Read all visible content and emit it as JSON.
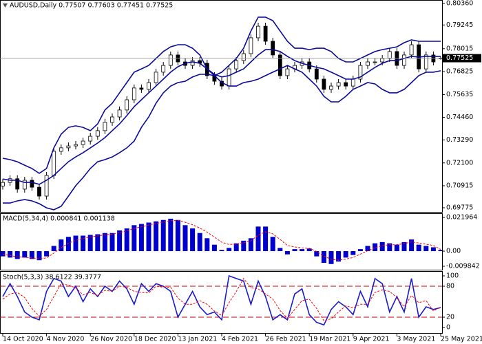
{
  "chart_data": [
    {
      "type": "candlestick",
      "title": "AUDUSD,Daily  0.77507 0.77603 0.77451 0.77525",
      "open": [
        0.709,
        0.7109,
        0.7128,
        0.7074,
        0.712,
        0.7084,
        0.7038,
        0.7145,
        0.727,
        0.7288,
        0.7298,
        0.7305,
        0.7323,
        0.7348,
        0.7377,
        0.742,
        0.7448,
        0.7484,
        0.7537,
        0.7598,
        0.7591,
        0.7626,
        0.768,
        0.7715,
        0.7769,
        0.7733,
        0.7715,
        0.774,
        0.7726,
        0.7662,
        0.7633,
        0.7608,
        0.7697,
        0.774,
        0.7776,
        0.7858,
        0.7918,
        0.784,
        0.7769,
        0.7662,
        0.7697,
        0.7715,
        0.7733,
        0.7697,
        0.7644,
        0.7591,
        0.7608,
        0.7626,
        0.7608,
        0.7644,
        0.7715,
        0.7733,
        0.7733,
        0.7751,
        0.7787,
        0.7715,
        0.7769,
        0.7822,
        0.7697,
        0.7769,
        0.77507
      ],
      "high": [
        0.7127,
        0.7146,
        0.7146,
        0.7138,
        0.7138,
        0.7102,
        0.7163,
        0.7288,
        0.7306,
        0.7316,
        0.7323,
        0.7341,
        0.7366,
        0.7395,
        0.7438,
        0.7466,
        0.7502,
        0.7555,
        0.7616,
        0.7616,
        0.7644,
        0.7698,
        0.7733,
        0.7787,
        0.7787,
        0.7751,
        0.7758,
        0.7758,
        0.7744,
        0.768,
        0.7651,
        0.7715,
        0.7758,
        0.7794,
        0.7876,
        0.7936,
        0.7936,
        0.7858,
        0.7787,
        0.7715,
        0.7733,
        0.7751,
        0.7751,
        0.7715,
        0.7662,
        0.7626,
        0.7644,
        0.7644,
        0.7662,
        0.7733,
        0.7751,
        0.7751,
        0.7769,
        0.7805,
        0.7805,
        0.7787,
        0.784,
        0.784,
        0.7787,
        0.7787,
        0.77603
      ],
      "low": [
        0.7072,
        0.7091,
        0.7056,
        0.7056,
        0.7066,
        0.702,
        0.702,
        0.7127,
        0.7252,
        0.727,
        0.728,
        0.7287,
        0.7305,
        0.733,
        0.7359,
        0.7402,
        0.743,
        0.7466,
        0.7519,
        0.7573,
        0.7573,
        0.7608,
        0.7662,
        0.7697,
        0.7715,
        0.7697,
        0.7697,
        0.7708,
        0.7644,
        0.7615,
        0.759,
        0.759,
        0.7679,
        0.7722,
        0.7758,
        0.784,
        0.7822,
        0.7751,
        0.7644,
        0.7644,
        0.7679,
        0.7697,
        0.7679,
        0.7626,
        0.7573,
        0.7573,
        0.759,
        0.759,
        0.759,
        0.7626,
        0.7697,
        0.7715,
        0.7715,
        0.7733,
        0.7697,
        0.7697,
        0.7751,
        0.7679,
        0.7679,
        0.7715,
        0.77451
      ],
      "close": [
        0.7109,
        0.7128,
        0.7074,
        0.712,
        0.7084,
        0.7038,
        0.7145,
        0.727,
        0.7288,
        0.7298,
        0.7305,
        0.7323,
        0.7348,
        0.7377,
        0.742,
        0.7448,
        0.7484,
        0.7537,
        0.7598,
        0.7591,
        0.7626,
        0.768,
        0.7715,
        0.7769,
        0.7733,
        0.7715,
        0.774,
        0.7726,
        0.7662,
        0.7633,
        0.7608,
        0.7697,
        0.774,
        0.7776,
        0.7858,
        0.7918,
        0.784,
        0.7769,
        0.7662,
        0.7697,
        0.7715,
        0.7733,
        0.7697,
        0.7644,
        0.7591,
        0.7608,
        0.7626,
        0.7608,
        0.7644,
        0.7715,
        0.7733,
        0.7733,
        0.7751,
        0.7787,
        0.7715,
        0.7769,
        0.7822,
        0.7697,
        0.7769,
        0.7733,
        0.77525
      ],
      "candle_color": "#000000",
      "band_color": "#0a0a9a",
      "upper_band": [
        0.7234,
        0.7227,
        0.7216,
        0.7198,
        0.7181,
        0.7156,
        0.7181,
        0.7288,
        0.7359,
        0.7394,
        0.7402,
        0.7394,
        0.7377,
        0.7412,
        0.7484,
        0.7519,
        0.7573,
        0.7626,
        0.768,
        0.7697,
        0.7715,
        0.7751,
        0.7787,
        0.7811,
        0.7822,
        0.7822,
        0.7804,
        0.7769,
        0.7697,
        0.7662,
        0.768,
        0.7715,
        0.7751,
        0.7804,
        0.7893,
        0.7965,
        0.7965,
        0.7947,
        0.7893,
        0.784,
        0.7804,
        0.7804,
        0.7797,
        0.7804,
        0.7804,
        0.7787,
        0.7751,
        0.7733,
        0.7733,
        0.7751,
        0.7769,
        0.7787,
        0.7797,
        0.7804,
        0.7811,
        0.7833,
        0.7847,
        0.784,
        0.784,
        0.784,
        0.784
      ],
      "middle_band": [
        0.7127,
        0.712,
        0.712,
        0.7109,
        0.7109,
        0.7099,
        0.712,
        0.7145,
        0.7181,
        0.7216,
        0.7241,
        0.7263,
        0.7288,
        0.7313,
        0.7341,
        0.7377,
        0.7412,
        0.7455,
        0.7501,
        0.7537,
        0.7573,
        0.7608,
        0.7644,
        0.768,
        0.7708,
        0.7726,
        0.7733,
        0.7726,
        0.7697,
        0.7669,
        0.7655,
        0.7662,
        0.768,
        0.7697,
        0.7733,
        0.7769,
        0.7797,
        0.7797,
        0.7787,
        0.7762,
        0.774,
        0.7726,
        0.7715,
        0.7705,
        0.7697,
        0.768,
        0.7662,
        0.7644,
        0.7644,
        0.7655,
        0.768,
        0.7705,
        0.7726,
        0.774,
        0.774,
        0.7751,
        0.7762,
        0.7758,
        0.7762,
        0.7762,
        0.7762
      ],
      "lower_band": [
        0.7002,
        0.7002,
        0.7013,
        0.702,
        0.7013,
        0.6999,
        0.6977,
        0.6967,
        0.6985,
        0.7038,
        0.7092,
        0.7134,
        0.7181,
        0.7216,
        0.7227,
        0.7241,
        0.7263,
        0.7288,
        0.7323,
        0.7394,
        0.7448,
        0.7519,
        0.7573,
        0.7608,
        0.7626,
        0.7633,
        0.7655,
        0.7669,
        0.7669,
        0.7662,
        0.7626,
        0.7608,
        0.7608,
        0.7626,
        0.7633,
        0.7644,
        0.7662,
        0.768,
        0.7697,
        0.7715,
        0.7697,
        0.768,
        0.7644,
        0.7608,
        0.7555,
        0.7526,
        0.7526,
        0.7555,
        0.7591,
        0.7608,
        0.7626,
        0.7619,
        0.7591,
        0.7573,
        0.7573,
        0.7591,
        0.7626,
        0.7662,
        0.768,
        0.768,
        0.7687
      ],
      "last_price": 0.77525,
      "ylim": [
        0.69775,
        0.8036
      ],
      "yticks": [
        {
          "value": 0.8036,
          "label": "0.80360"
        },
        0.79245,
        0.78015,
        0.76825,
        0.75635,
        {
          "value": 0.7446,
          "label": "0.74460"
        },
        {
          "value": 0.7329,
          "label": "0.73290"
        },
        {
          "value": 0.721,
          "label": "0.72100"
        },
        0.70915,
        0.69775
      ]
    },
    {
      "type": "bar",
      "title": "MACD(5,34,4) 0.000841 0.001138",
      "color": "#0000cd",
      "values": [
        -0.0034,
        -0.0042,
        -0.0051,
        -0.0042,
        -0.0051,
        -0.0059,
        -0.0034,
        0.0034,
        0.0076,
        0.0093,
        0.0101,
        0.0101,
        0.0106,
        0.011,
        0.0118,
        0.0118,
        0.0135,
        0.0148,
        0.0169,
        0.0177,
        0.0186,
        0.0194,
        0.0203,
        0.0211,
        0.0203,
        0.0169,
        0.0148,
        0.0118,
        0.0084,
        0.0042,
        0.0008,
        0.0021,
        0.0051,
        0.0068,
        0.0084,
        0.016,
        0.016,
        0.0093,
        0.0021,
        -0.0021,
        0.0013,
        0.0013,
        0.0017,
        -0.0034,
        -0.0076,
        -0.0084,
        -0.0068,
        -0.0042,
        -0.0025,
        0.0013,
        0.0034,
        0.0051,
        0.0059,
        0.0051,
        0.0042,
        0.0059,
        0.0076,
        0.0042,
        0.0034,
        0.0025,
        0.000841
      ],
      "signal_color": "#ff0000",
      "signal": [
        -0.002,
        -0.0028,
        -0.0037,
        -0.004,
        -0.0044,
        -0.005,
        -0.0044,
        -0.0013,
        0.0023,
        0.0051,
        0.0071,
        0.0083,
        0.0092,
        0.0099,
        0.0106,
        0.0111,
        0.0121,
        0.0132,
        0.0147,
        0.0159,
        0.017,
        0.018,
        0.0189,
        0.0198,
        0.02,
        0.0188,
        0.0172,
        0.015,
        0.0124,
        0.0091,
        0.0058,
        0.0043,
        0.0046,
        0.0055,
        0.0067,
        0.0104,
        0.0126,
        0.0113,
        0.0076,
        0.0037,
        0.0027,
        0.0021,
        0.0019,
        -0.0002,
        -0.0032,
        -0.0053,
        -0.0059,
        -0.0052,
        -0.0041,
        -0.0019,
        0.0002,
        0.0022,
        0.0036,
        0.0042,
        0.0042,
        0.0049,
        0.006,
        0.0053,
        0.0045,
        0.0037,
        0.001138
      ],
      "ylim": [
        -0.009842,
        0.021964
      ],
      "yticks": [
        0.021964,
        {
          "value": 0,
          "label": "0.00"
        },
        -0.009842
      ]
    },
    {
      "type": "line",
      "title": "Stoch(5,3,3) 38.6122 39.3777",
      "categories": [
        "14 Oct 2020",
        null,
        null,
        null,
        null,
        null,
        "4 Nov 2020",
        null,
        null,
        null,
        null,
        null,
        "26 Nov 2020",
        null,
        null,
        null,
        null,
        null,
        "18 Dec 2020",
        null,
        null,
        null,
        null,
        null,
        "13 Jan 2021",
        null,
        null,
        null,
        null,
        null,
        "4 Feb 2021",
        null,
        null,
        null,
        null,
        null,
        "26 Feb 2021",
        null,
        null,
        null,
        null,
        null,
        "19 Mar 2021",
        null,
        null,
        null,
        null,
        null,
        "9 Apr 2021",
        null,
        null,
        null,
        null,
        null,
        "3 May 2021",
        null,
        null,
        null,
        null,
        null,
        "25 May 2021"
      ],
      "main_color": "#1a1acd",
      "main": [
        60,
        85,
        60,
        30,
        20,
        15,
        70,
        95,
        90,
        60,
        80,
        50,
        75,
        60,
        80,
        70,
        90,
        75,
        45,
        85,
        70,
        85,
        80,
        70,
        20,
        45,
        70,
        40,
        25,
        30,
        15,
        100,
        95,
        90,
        45,
        90,
        60,
        15,
        25,
        15,
        65,
        75,
        25,
        10,
        5,
        35,
        50,
        40,
        25,
        70,
        40,
        95,
        85,
        30,
        60,
        30,
        95,
        20,
        40,
        35,
        38.6122
      ],
      "signal_color": "#ff0000",
      "signal": [
        55,
        65,
        68,
        58,
        37,
        22,
        35,
        60,
        85,
        82,
        77,
        63,
        68,
        62,
        72,
        70,
        80,
        78,
        70,
        68,
        67,
        80,
        78,
        78,
        57,
        45,
        45,
        52,
        45,
        32,
        23,
        48,
        70,
        95,
        77,
        75,
        65,
        55,
        33,
        18,
        35,
        52,
        55,
        37,
        13,
        17,
        30,
        42,
        38,
        45,
        45,
        68,
        73,
        70,
        58,
        40,
        62,
        48,
        52,
        32,
        39.3777
      ],
      "levels": [
        20,
        80
      ],
      "level_color": "#cc0000",
      "ylim": [
        0,
        100
      ],
      "yticks": [
        100,
        80,
        20,
        0
      ]
    }
  ]
}
